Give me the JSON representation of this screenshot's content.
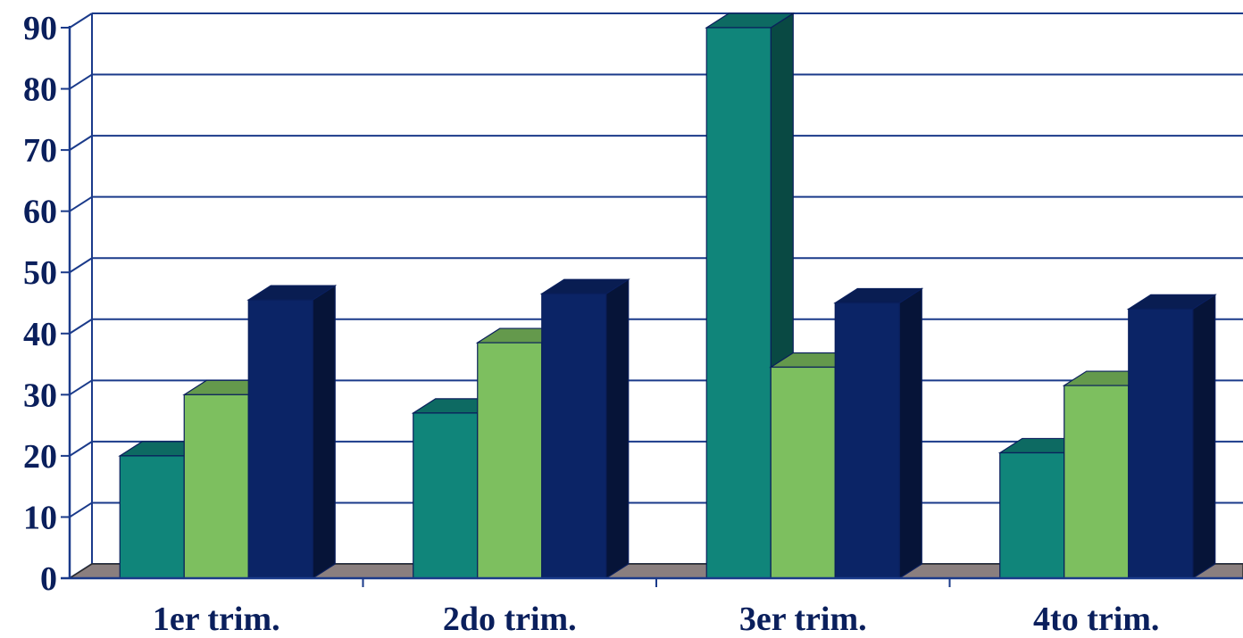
{
  "chart_data": {
    "type": "bar",
    "title": "",
    "xlabel": "",
    "ylabel": "",
    "categories": [
      "1er trim.",
      "2do trim.",
      "3er trim.",
      "4to trim."
    ],
    "series": [
      {
        "values": [
          20,
          27,
          90,
          20.5
        ],
        "color": "#10857a"
      },
      {
        "values": [
          30,
          38.5,
          34.5,
          31.5
        ],
        "color": "#7dbf5f"
      },
      {
        "values": [
          45.5,
          46.5,
          45,
          44
        ],
        "color": "#0b2466"
      }
    ],
    "ylim": [
      0,
      90
    ],
    "yticks": [
      0,
      10,
      20,
      30,
      40,
      50,
      60,
      70,
      80,
      90
    ],
    "grid": true,
    "style": "3d-column"
  }
}
